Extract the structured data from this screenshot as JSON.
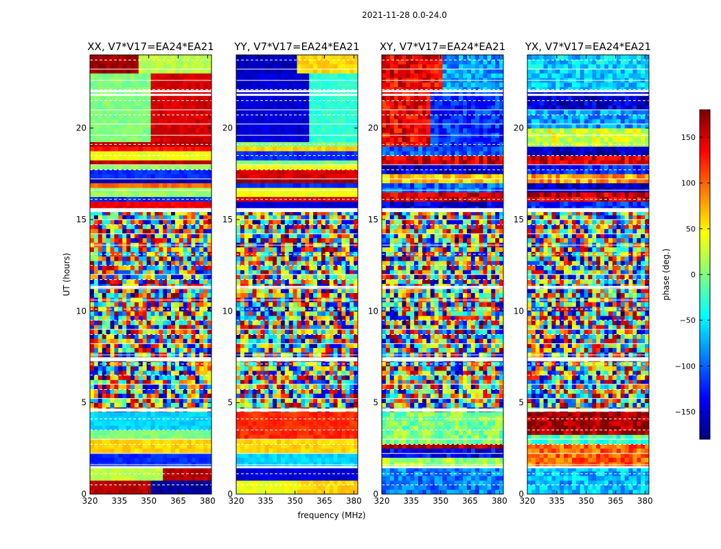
{
  "figure_title": "2021-11-28 0.0-24.0",
  "chart_data": {
    "type": "heatmap",
    "xlabel": "frequency (MHz)",
    "ylabel": "UT (hours)",
    "xlim": [
      320,
      382
    ],
    "ylim": [
      0,
      24
    ],
    "x_ticks": [
      320,
      335,
      350,
      365,
      380
    ],
    "y_ticks": [
      0,
      5,
      10,
      15,
      20
    ],
    "colorbar": {
      "label": "phase (deg.)",
      "range": [
        -180,
        180
      ],
      "ticks": [
        150,
        100,
        50,
        0,
        -50,
        -100,
        -150
      ],
      "tick_labels": [
        "150",
        "100",
        "50",
        "0",
        "−50",
        "−100",
        "−150"
      ],
      "colormap": "jet",
      "colors": [
        "#00007f",
        "#0000ff",
        "#007fff",
        "#00ffff",
        "#7fff7f",
        "#ffff00",
        "#ff7f00",
        "#ff0000",
        "#7f0000"
      ]
    },
    "panels": [
      {
        "title": "XX, V7*V17=EA24*EA21",
        "pol": "XX"
      },
      {
        "title": "YY, V7*V17=EA24*EA21",
        "pol": "YY"
      },
      {
        "title": "XY, V7*V17=EA24*EA21",
        "pol": "XY"
      },
      {
        "title": "YX, V7*V17=EA24*EA21",
        "pol": "YX"
      }
    ]
  }
}
